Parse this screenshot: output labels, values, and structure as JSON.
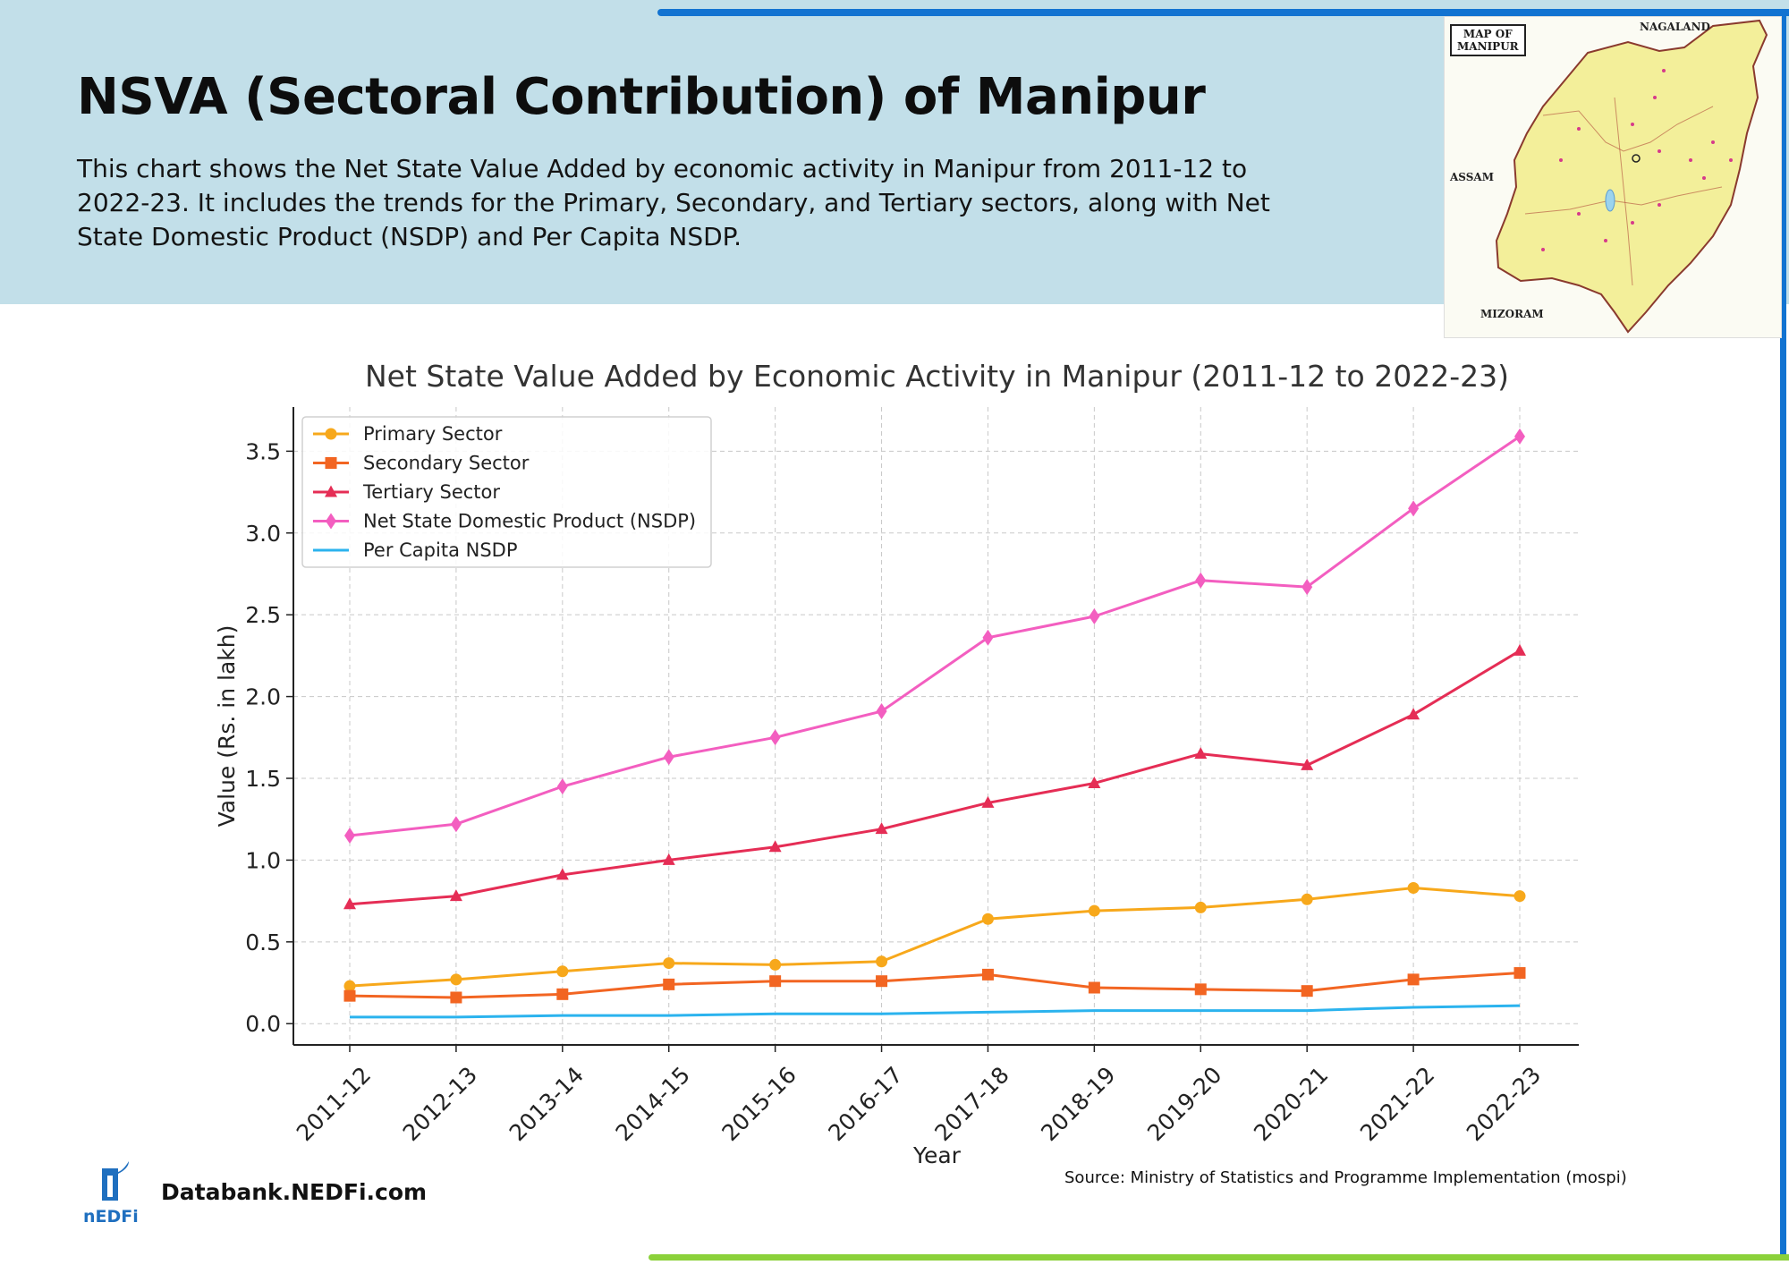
{
  "header": {
    "title": "NSVA (Sectoral Contribution) of Manipur",
    "description": "This chart shows the Net State Value Added by economic activity in Manipur from 2011-12 to 2022-23. It includes the trends for the Primary, Secondary, and Tertiary sectors, along with Net State Domestic Product (NSDP) and Per Capita NSDP."
  },
  "map": {
    "caption": "MAP OF\nMANIPUR",
    "labels": [
      "NAGALAND",
      "ASSAM",
      "MIZORAM"
    ]
  },
  "chart_data": {
    "type": "line",
    "title": "Net State Value Added by Economic Activity in Manipur (2011-12 to 2022-23)",
    "xlabel": "Year",
    "ylabel": "Value (Rs. in lakh)",
    "ylim": [
      -0.13,
      3.77
    ],
    "yticks": [
      "0.0",
      "0.5",
      "1.0",
      "1.5",
      "2.0",
      "2.5",
      "3.0",
      "3.5"
    ],
    "grid": true,
    "legend_position": "top-left",
    "categories": [
      "2011-12",
      "2012-13",
      "2013-14",
      "2014-15",
      "2015-16",
      "2016-17",
      "2017-18",
      "2018-19",
      "2019-20",
      "2020-21",
      "2021-22",
      "2022-23"
    ],
    "series": [
      {
        "name": "Primary Sector",
        "color": "#f7a81b",
        "marker": "circle",
        "values": [
          0.23,
          0.27,
          0.32,
          0.37,
          0.36,
          0.38,
          0.64,
          0.69,
          0.71,
          0.76,
          0.83,
          0.78
        ]
      },
      {
        "name": "Secondary Sector",
        "color": "#f26522",
        "marker": "square",
        "values": [
          0.17,
          0.16,
          0.18,
          0.24,
          0.26,
          0.26,
          0.3,
          0.22,
          0.21,
          0.2,
          0.27,
          0.31
        ]
      },
      {
        "name": "Tertiary Sector",
        "color": "#e52d55",
        "marker": "triangle",
        "values": [
          0.73,
          0.78,
          0.91,
          1.0,
          1.08,
          1.19,
          1.35,
          1.47,
          1.65,
          1.58,
          1.89,
          2.28
        ]
      },
      {
        "name": "Net State Domestic Product (NSDP)",
        "color": "#f35ec0",
        "marker": "diamond",
        "values": [
          1.15,
          1.22,
          1.45,
          1.63,
          1.75,
          1.91,
          2.36,
          2.49,
          2.71,
          2.67,
          3.15,
          3.59
        ]
      },
      {
        "name": "Per Capita NSDP",
        "color": "#2bb3ee",
        "marker": "none",
        "values": [
          0.04,
          0.04,
          0.05,
          0.05,
          0.06,
          0.06,
          0.07,
          0.08,
          0.08,
          0.08,
          0.1,
          0.11
        ]
      }
    ]
  },
  "footer": {
    "site": "Databank.NEDFi.com",
    "logo_text": "nEDFi",
    "source": "Source: Ministry of Statistics and Programme Implementation (mospi)"
  }
}
